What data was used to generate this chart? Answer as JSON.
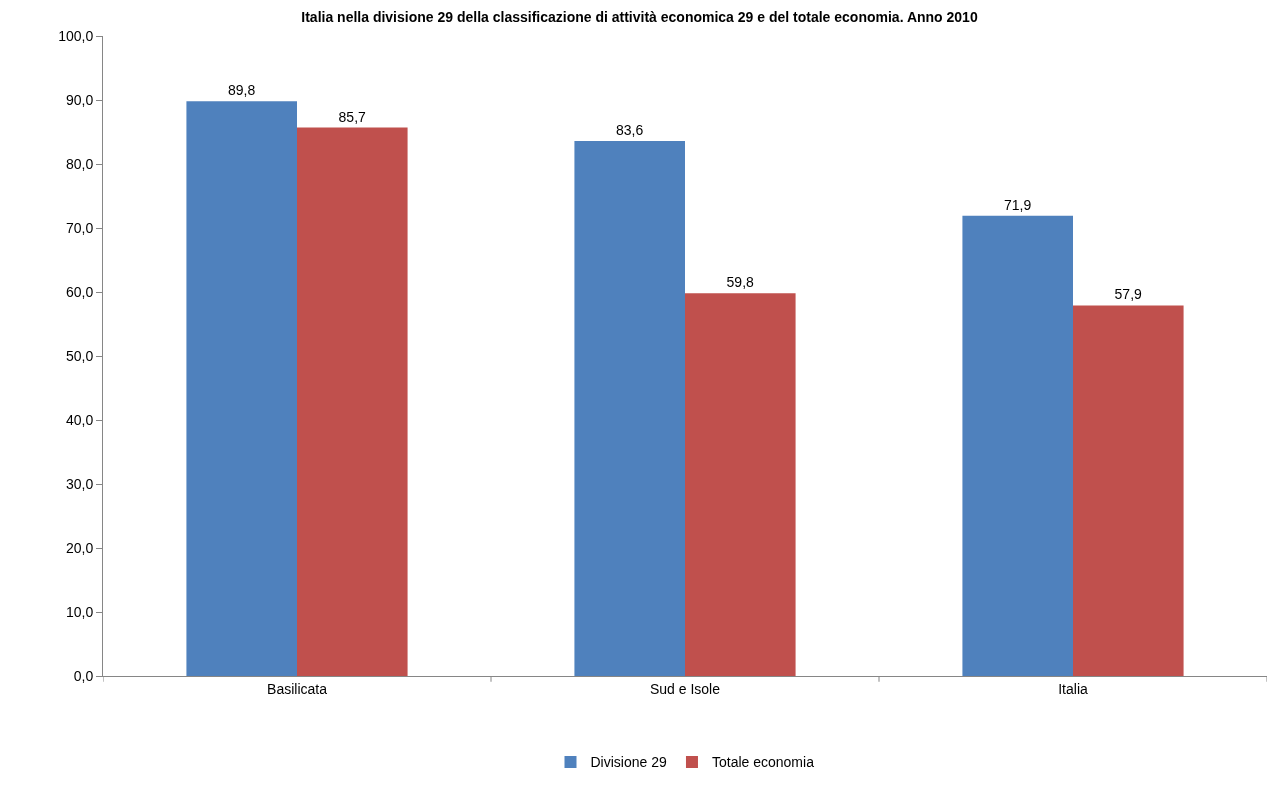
{
  "chart_data": {
    "type": "bar",
    "title": "Italia nella divisione 29 della classificazione di attività economica 29 e del totale economia. Anno 2010",
    "categories": [
      "Basilicata",
      "Sud e Isole",
      "Italia"
    ],
    "series": [
      {
        "name": "Divisione 29",
        "color": "#4f81bd",
        "values": [
          89.8,
          83.6,
          71.9
        ],
        "value_labels": [
          "89,8",
          "83,6",
          "71,9"
        ]
      },
      {
        "name": "Totale economia",
        "color": "#c0504d",
        "values": [
          85.7,
          59.8,
          57.9
        ],
        "value_labels": [
          "85,7",
          "59,8",
          "57,9"
        ]
      }
    ],
    "ylim": [
      0,
      100
    ],
    "yticks": [
      {
        "value": 0,
        "label": "0,0"
      },
      {
        "value": 10,
        "label": "10,0"
      },
      {
        "value": 20,
        "label": "20,0"
      },
      {
        "value": 30,
        "label": "30,0"
      },
      {
        "value": 40,
        "label": "40,0"
      },
      {
        "value": 50,
        "label": "50,0"
      },
      {
        "value": 60,
        "label": "60,0"
      },
      {
        "value": 70,
        "label": "70,0"
      },
      {
        "value": 80,
        "label": "80,0"
      },
      {
        "value": 90,
        "label": "90,0"
      },
      {
        "value": 100,
        "label": "100,0"
      }
    ],
    "grid": false,
    "legend": "bottom"
  }
}
